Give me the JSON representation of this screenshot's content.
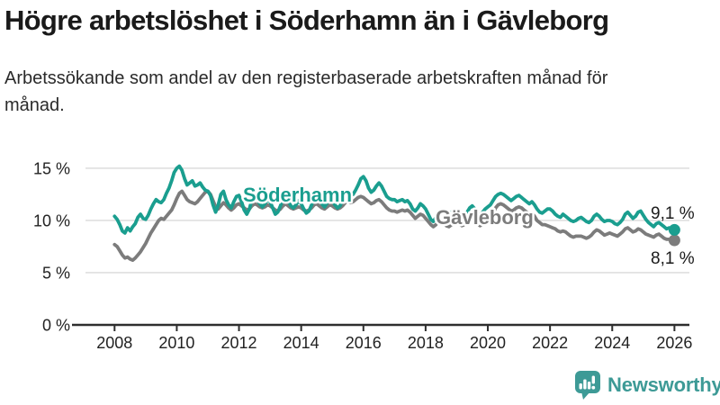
{
  "header": {
    "title": "Högre arbetslöshet i Söderhamn än i Gävleborg",
    "subtitle": "Arbetssökande som andel av den registerbaserade arbetskraften månad för månad."
  },
  "branding": {
    "name": "Newsworthy",
    "logo_color": "#3d9a96",
    "icon": "bar-chart-speech-bubble-icon"
  },
  "chart_data": {
    "type": "line",
    "x_start_year": 2008,
    "x_step_months": 1,
    "xtick_values": [
      2008,
      2010,
      2012,
      2014,
      2016,
      2018,
      2020,
      2022,
      2024,
      2026
    ],
    "xtick_labels": [
      "2008",
      "2010",
      "2012",
      "2014",
      "2016",
      "2018",
      "2020",
      "2022",
      "2024",
      "2026"
    ],
    "ytick_values": [
      0,
      5,
      10,
      15
    ],
    "ytick_labels": [
      "0 %",
      "5 %",
      "10 %",
      "15 %"
    ],
    "ylim": [
      0,
      17
    ],
    "xlim": [
      2006.6,
      2026.6
    ],
    "grid": "horizontal",
    "legend_position": "inline-labels",
    "grid_color": "#d9d9d9",
    "axis_color": "#2e2e2e",
    "tick_label_color": "#222222",
    "end_label_color": "#1a1a1a",
    "series": [
      {
        "name": "Söderhamn",
        "color": "#1a9e8f",
        "end_label": "9,1 %",
        "last_value": 9.1,
        "values": [
          10.4,
          10.1,
          9.6,
          9.0,
          8.8,
          9.3,
          9.0,
          9.4,
          9.7,
          10.3,
          10.6,
          10.2,
          10.1,
          10.5,
          11.1,
          11.6,
          12.0,
          11.8,
          11.7,
          12.0,
          12.6,
          13.1,
          13.8,
          14.6,
          15.0,
          15.2,
          14.8,
          14.0,
          13.4,
          13.6,
          13.8,
          13.3,
          13.4,
          13.6,
          13.2,
          12.9,
          12.8,
          12.4,
          11.5,
          10.8,
          11.5,
          12.5,
          12.8,
          12.0,
          11.5,
          11.2,
          11.8,
          12.3,
          12.4,
          11.8,
          11.0,
          10.6,
          11.1,
          12.0,
          12.5,
          12.1,
          11.6,
          11.3,
          11.6,
          12.0,
          11.8,
          11.2,
          10.6,
          10.8,
          11.4,
          12.1,
          12.4,
          11.9,
          11.4,
          11.2,
          11.5,
          11.9,
          11.6,
          11.1,
          10.7,
          10.9,
          11.5,
          12.2,
          12.4,
          12.0,
          11.6,
          11.3,
          11.7,
          12.1,
          11.9,
          11.5,
          11.2,
          11.4,
          12.0,
          12.6,
          12.8,
          12.4,
          12.5,
          12.9,
          13.4,
          14.0,
          14.2,
          13.8,
          13.1,
          12.7,
          12.9,
          13.3,
          13.6,
          13.3,
          12.8,
          12.3,
          12.1,
          12.0,
          12.0,
          11.8,
          11.9,
          12.0,
          11.8,
          11.9,
          11.6,
          11.1,
          10.9,
          11.2,
          11.6,
          11.4,
          11.1,
          10.6,
          10.1,
          9.9,
          10.3,
          10.8,
          11.0,
          10.7,
          10.4,
          10.5,
          10.8,
          11.0,
          11.0,
          10.7,
          10.4,
          10.5,
          10.8,
          11.2,
          11.4,
          11.1,
          10.7,
          10.5,
          10.8,
          11.1,
          11.3,
          11.5,
          11.9,
          12.3,
          12.5,
          12.6,
          12.5,
          12.3,
          12.1,
          11.9,
          12.1,
          12.3,
          12.4,
          12.2,
          12.0,
          11.8,
          11.6,
          11.8,
          11.5,
          11.1,
          10.8,
          10.7,
          10.9,
          11.1,
          11.1,
          10.9,
          10.6,
          10.4,
          10.3,
          10.6,
          10.4,
          10.2,
          10.0,
          9.9,
          10.0,
          10.2,
          10.3,
          10.1,
          9.9,
          9.8,
          10.0,
          10.4,
          10.6,
          10.4,
          10.1,
          9.9,
          10.0,
          10.0,
          9.9,
          9.7,
          9.6,
          9.8,
          10.1,
          10.6,
          10.8,
          10.5,
          10.2,
          10.4,
          10.8,
          10.9,
          10.5,
          10.1,
          9.8,
          9.6,
          9.4,
          9.7,
          9.8,
          9.6,
          9.4,
          9.2,
          9.3,
          9.2,
          9.1
        ]
      },
      {
        "name": "Gävleborg",
        "color": "#7c7c7c",
        "end_label": "8,1 %",
        "last_value": 8.1,
        "values": [
          7.7,
          7.5,
          7.1,
          6.7,
          6.4,
          6.5,
          6.3,
          6.2,
          6.4,
          6.7,
          7.0,
          7.4,
          7.8,
          8.3,
          8.8,
          9.2,
          9.6,
          10.0,
          10.2,
          10.1,
          10.4,
          10.7,
          11.0,
          11.5,
          12.1,
          12.6,
          12.8,
          12.4,
          12.0,
          11.8,
          11.7,
          11.6,
          11.8,
          12.1,
          12.4,
          12.7,
          12.8,
          12.5,
          11.9,
          11.3,
          11.1,
          11.4,
          11.7,
          11.5,
          11.2,
          11.0,
          11.2,
          11.5,
          11.6,
          11.4,
          11.2,
          11.0,
          11.1,
          11.4,
          11.6,
          11.5,
          11.3,
          11.2,
          11.3,
          11.5,
          11.4,
          11.2,
          11.0,
          10.9,
          11.1,
          11.4,
          11.6,
          11.4,
          11.2,
          11.1,
          11.2,
          11.3,
          11.2,
          11.0,
          10.9,
          11.0,
          11.2,
          11.5,
          11.6,
          11.4,
          11.2,
          11.1,
          11.3,
          11.5,
          11.4,
          11.2,
          11.1,
          11.2,
          11.4,
          11.7,
          11.9,
          11.7,
          11.8,
          12.0,
          12.2,
          12.3,
          12.2,
          12.0,
          11.8,
          11.6,
          11.7,
          11.9,
          12.0,
          11.8,
          11.5,
          11.2,
          11.0,
          10.9,
          10.9,
          10.8,
          10.9,
          11.0,
          10.9,
          11.0,
          10.8,
          10.5,
          10.2,
          10.4,
          10.6,
          10.5,
          10.2,
          9.9,
          9.6,
          9.4,
          9.6,
          9.9,
          10.0,
          9.8,
          9.5,
          9.4,
          9.6,
          9.8,
          9.9,
          9.7,
          9.5,
          9.6,
          9.8,
          10.1,
          10.2,
          10.0,
          9.7,
          9.5,
          9.7,
          9.9,
          10.1,
          10.3,
          10.7,
          11.2,
          11.5,
          11.6,
          11.5,
          11.3,
          11.1,
          10.9,
          11.0,
          11.2,
          11.3,
          11.2,
          11.0,
          10.8,
          10.6,
          10.7,
          10.4,
          10.0,
          9.8,
          9.6,
          9.6,
          9.5,
          9.4,
          9.3,
          9.2,
          9.0,
          8.9,
          9.0,
          8.9,
          8.7,
          8.5,
          8.4,
          8.5,
          8.5,
          8.5,
          8.4,
          8.3,
          8.4,
          8.6,
          8.9,
          9.1,
          9.0,
          8.8,
          8.6,
          8.7,
          8.8,
          8.7,
          8.6,
          8.5,
          8.7,
          8.9,
          9.2,
          9.3,
          9.1,
          8.9,
          9.0,
          9.2,
          9.1,
          8.9,
          8.7,
          8.6,
          8.5,
          8.4,
          8.6,
          8.7,
          8.5,
          8.3,
          8.2,
          8.2,
          8.1,
          8.1
        ]
      }
    ]
  }
}
